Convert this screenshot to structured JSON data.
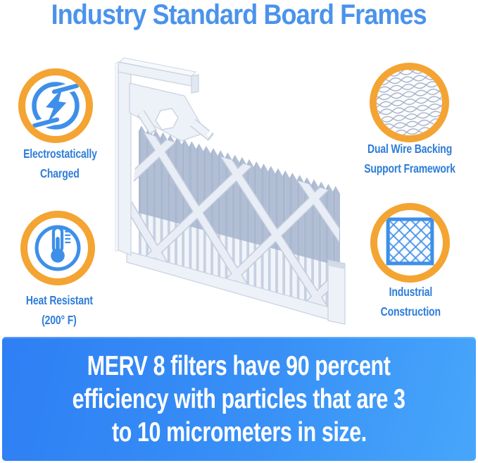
{
  "title": {
    "text": "Industry Standard Board Frames",
    "color": "#4A93EB"
  },
  "features": {
    "electrostatic": {
      "line1": "Electrostatically",
      "line2": "Charged",
      "icon": "lightning-icon"
    },
    "dual_wire": {
      "line1": "Dual Wire Backing",
      "line2": "Support Framework",
      "icon": "wire-mesh-icon"
    },
    "heat": {
      "line1": "Heat Resistant",
      "line2": "(200° F)",
      "icon": "thermometer-icon"
    },
    "industrial": {
      "line1": "Industrial",
      "line2": "Construction",
      "icon": "diamond-lattice-icon"
    }
  },
  "illustration": {
    "name": "pleated-air-filter-with-board-frame"
  },
  "banner": {
    "line1": "MERV 8 filters have 90 percent",
    "line2": "efficiency with particles that are 3",
    "line3": "to 10 micrometers in size.",
    "text_color": "#ffffff",
    "bg_start": "#2E7FF4",
    "bg_end": "#47A6FB"
  },
  "colors": {
    "ring_orange": "#F4A432",
    "icon_blue": "#3E8FE9",
    "label_blue": "#2E7DD8",
    "title_blue": "#4A93EB"
  }
}
